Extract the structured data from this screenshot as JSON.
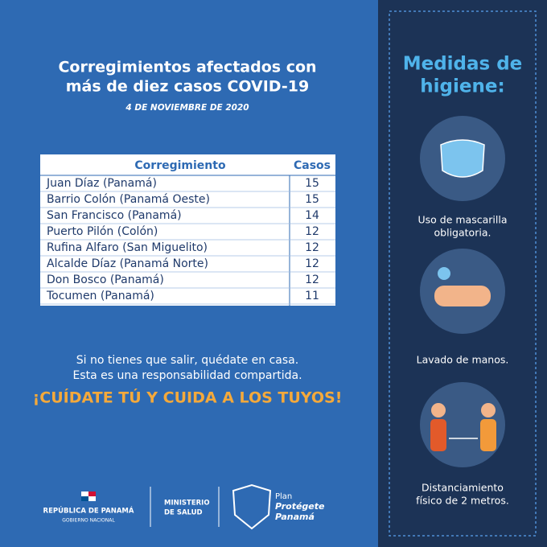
{
  "header": {
    "title": [
      "Corregimientos afectados con",
      "más de diez casos COVID-19"
    ],
    "date": "4  DE NOVIEMBRE DE 2020"
  },
  "table": {
    "columns": [
      "Corregimiento",
      "Casos"
    ],
    "rows": [
      [
        "Juan Díaz (Panamá)",
        15
      ],
      [
        "Barrio Colón (Panamá Oeste)",
        15
      ],
      [
        "San Francisco (Panamá)",
        14
      ],
      [
        "Puerto Pilón (Colón)",
        12
      ],
      [
        "Rufina Alfaro (San Miguelito)",
        12
      ],
      [
        "Alcalde Díaz (Panamá Norte)",
        12
      ],
      [
        "Don Bosco (Panamá)",
        12
      ],
      [
        "Tocumen (Panamá)",
        11
      ]
    ]
  },
  "message": {
    "lines": [
      "Si no tienes que salir, quédate en casa.",
      "Esta es una responsabilidad compartida."
    ],
    "slogan": "¡CUÍDATE TÚ Y CUIDA A LOS TUYOS!"
  },
  "sidebar": {
    "title": [
      "Medidas de",
      "higiene:"
    ],
    "items": [
      {
        "caption": [
          "Uso de mascarilla",
          "obligatoria."
        ]
      },
      {
        "caption": [
          "Lavado de manos."
        ]
      },
      {
        "caption": [
          "Distanciamiento",
          "físico de 2 metros."
        ]
      }
    ]
  },
  "footer": {
    "republic": "REPÚBLICA DE PANAMÁ",
    "government": "GOBIERNO NACIONAL",
    "ministry": [
      "MINISTERIO",
      "DE SALUD"
    ],
    "plan": [
      "Plan",
      "Protégete",
      "Panamá"
    ]
  }
}
